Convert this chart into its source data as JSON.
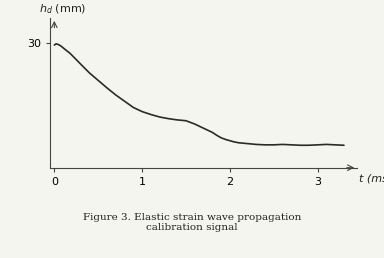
{
  "xlabel": "t (ms)",
  "ylabel": "hₐ (mm)",
  "xlim": [
    -0.05,
    3.45
  ],
  "ylim": [
    0,
    36
  ],
  "yticks": [
    30
  ],
  "xticks": [
    0,
    1,
    2,
    3
  ],
  "bg_color": "#f5f5f0",
  "line_color": "#2a2a2a",
  "caption_line1": "Figure 3. Elastic strain wave propagation",
  "caption_line2": "calibration signal",
  "curve_x": [
    0.0,
    0.02,
    0.05,
    0.08,
    0.12,
    0.18,
    0.25,
    0.32,
    0.4,
    0.5,
    0.6,
    0.7,
    0.8,
    0.9,
    1.0,
    1.1,
    1.2,
    1.3,
    1.4,
    1.5,
    1.6,
    1.65,
    1.7,
    1.75,
    1.8,
    1.85,
    1.9,
    1.95,
    2.0,
    2.05,
    2.1,
    2.2,
    2.3,
    2.4,
    2.5,
    2.6,
    2.7,
    2.8,
    2.9,
    3.0,
    3.1,
    3.2,
    3.3
  ],
  "curve_y": [
    29.5,
    29.8,
    29.6,
    29.2,
    28.5,
    27.5,
    26.0,
    24.5,
    22.8,
    21.0,
    19.2,
    17.5,
    16.0,
    14.5,
    13.5,
    12.8,
    12.2,
    11.8,
    11.5,
    11.3,
    10.5,
    10.0,
    9.5,
    9.0,
    8.5,
    7.8,
    7.2,
    6.8,
    6.5,
    6.2,
    6.0,
    5.8,
    5.6,
    5.5,
    5.5,
    5.6,
    5.5,
    5.4,
    5.4,
    5.5,
    5.6,
    5.5,
    5.4
  ]
}
